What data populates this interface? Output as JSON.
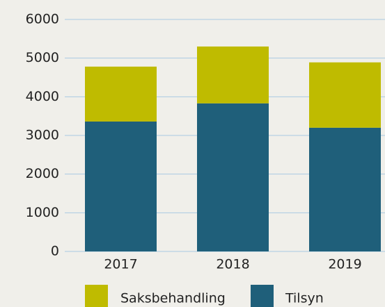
{
  "chart_data": {
    "type": "stacked_bar",
    "categories": [
      "2017",
      "2018",
      "2019"
    ],
    "series": [
      {
        "name": "Tilsyn",
        "color": "#1f5f7a",
        "values": [
          3360,
          3830,
          3200
        ]
      },
      {
        "name": "Saksbehandling",
        "color": "#bfbb00",
        "values": [
          1420,
          1470,
          1690
        ]
      }
    ],
    "ylim": [
      0,
      6000
    ],
    "yticks": [
      0,
      1000,
      2000,
      3000,
      4000,
      5000,
      6000
    ],
    "grid": true,
    "legend": "bottom"
  }
}
